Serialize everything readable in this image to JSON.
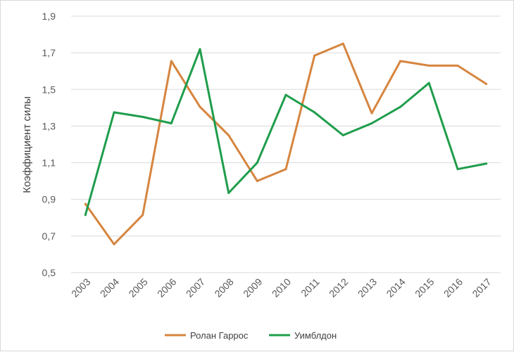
{
  "chart_data": {
    "type": "line",
    "title": "",
    "xlabel": "",
    "ylabel": "Коэффициент силы",
    "categories": [
      "2003",
      "2004",
      "2005",
      "2006",
      "2007",
      "2008",
      "2009",
      "2010",
      "2011",
      "2012",
      "2013",
      "2014",
      "2015",
      "2016",
      "2017"
    ],
    "yticks": [
      "0,5",
      "0,7",
      "0,9",
      "1,1",
      "1,3",
      "1,5",
      "1,7",
      "1,9"
    ],
    "ylim": [
      0.5,
      1.9
    ],
    "grid": true,
    "legend_position": "bottom",
    "series": [
      {
        "name": "Ролан Гаррос",
        "color": "#d6853f",
        "values": [
          0.875,
          0.655,
          0.815,
          1.655,
          1.405,
          1.25,
          1.0,
          1.065,
          1.685,
          1.75,
          1.37,
          1.655,
          1.63,
          1.63,
          1.53
        ]
      },
      {
        "name": "Уимблдон",
        "color": "#1f9d4c",
        "values": [
          0.815,
          1.375,
          1.35,
          1.315,
          1.72,
          0.935,
          1.1,
          1.47,
          1.375,
          1.25,
          1.315,
          1.405,
          1.535,
          1.065,
          1.095
        ]
      }
    ]
  }
}
